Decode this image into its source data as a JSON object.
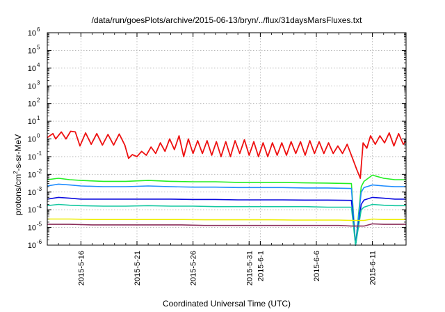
{
  "chart_data": {
    "type": "line",
    "title": "/data/run/goesPlots/archive/2015-06-13/bryn/../flux/31daysMarsFluxes.txt",
    "xlabel": "Coordinated Universal Time (UTC)",
    "ylabel": "protons/cm²-s-sr-MeV",
    "ylabel_parts": {
      "base": "protons/cm",
      "sup": "2",
      "rest": "-s-sr-MeV"
    },
    "y_scale": "log",
    "ylim": [
      1e-06,
      1000000.0
    ],
    "xlim": [
      "2015-05-13",
      "2015-06-14"
    ],
    "grid": true,
    "legend": "none",
    "y_ticks": [
      {
        "value": 1e-06,
        "base": "10",
        "exp": "-6"
      },
      {
        "value": 1e-05,
        "base": "10",
        "exp": "-5"
      },
      {
        "value": 0.0001,
        "base": "10",
        "exp": "-4"
      },
      {
        "value": 0.001,
        "base": "10",
        "exp": "-3"
      },
      {
        "value": 0.01,
        "base": "10",
        "exp": "-2"
      },
      {
        "value": 0.1,
        "base": "10",
        "exp": "-1"
      },
      {
        "value": 1.0,
        "base": "10",
        "exp": "0"
      },
      {
        "value": 10.0,
        "base": "10",
        "exp": "1"
      },
      {
        "value": 100.0,
        "base": "10",
        "exp": "2"
      },
      {
        "value": 1000.0,
        "base": "10",
        "exp": "3"
      },
      {
        "value": 10000.0,
        "base": "10",
        "exp": "4"
      },
      {
        "value": 100000.0,
        "base": "10",
        "exp": "5"
      },
      {
        "value": 1000000.0,
        "base": "10",
        "exp": "6"
      }
    ],
    "x_ticks": [
      {
        "date": "2015-05-16",
        "label": "2015-5-16"
      },
      {
        "date": "2015-05-21",
        "label": "2015-5-21"
      },
      {
        "date": "2015-05-26",
        "label": "2015-5-26"
      },
      {
        "date": "2015-05-31",
        "label": "2015-5-31"
      },
      {
        "date": "2015-06-01",
        "label": "2015-6-1"
      },
      {
        "date": "2015-06-06",
        "label": "2015-6-6"
      },
      {
        "date": "2015-06-11",
        "label": "2015-6-11"
      }
    ],
    "series": [
      {
        "color": "#ee1111",
        "width": 1.8,
        "points": [
          [
            "2015-05-13 00:00",
            1.2
          ],
          [
            "2015-05-13 12:00",
            2.0
          ],
          [
            "2015-05-13 18:00",
            1.0
          ],
          [
            "2015-05-14 06:00",
            2.5
          ],
          [
            "2015-05-14 16:00",
            1.0
          ],
          [
            "2015-05-15 02:00",
            2.7
          ],
          [
            "2015-05-15 12:00",
            2.5
          ],
          [
            "2015-05-15 22:00",
            0.4
          ],
          [
            "2015-05-16 10:00",
            2.2
          ],
          [
            "2015-05-16 22:00",
            0.5
          ],
          [
            "2015-05-17 10:00",
            2.0
          ],
          [
            "2015-05-17 22:00",
            0.45
          ],
          [
            "2015-05-18 10:00",
            1.8
          ],
          [
            "2015-05-18 22:00",
            0.45
          ],
          [
            "2015-05-19 10:00",
            1.9
          ],
          [
            "2015-05-19 22:00",
            0.45
          ],
          [
            "2015-05-20 06:00",
            0.08
          ],
          [
            "2015-05-20 14:00",
            0.13
          ],
          [
            "2015-05-21 00:00",
            0.1
          ],
          [
            "2015-05-21 10:00",
            0.2
          ],
          [
            "2015-05-21 20:00",
            0.12
          ],
          [
            "2015-05-22 06:00",
            0.35
          ],
          [
            "2015-05-22 16:00",
            0.15
          ],
          [
            "2015-05-23 02:00",
            0.6
          ],
          [
            "2015-05-23 12:00",
            0.2
          ],
          [
            "2015-05-23 22:00",
            1.0
          ],
          [
            "2015-05-24 08:00",
            0.25
          ],
          [
            "2015-05-24 18:00",
            1.5
          ],
          [
            "2015-05-25 04:00",
            0.1
          ],
          [
            "2015-05-25 14:00",
            1.0
          ],
          [
            "2015-05-26 00:00",
            0.15
          ],
          [
            "2015-05-26 10:00",
            0.8
          ],
          [
            "2015-05-26 20:00",
            0.15
          ],
          [
            "2015-05-27 06:00",
            0.8
          ],
          [
            "2015-05-27 16:00",
            0.12
          ],
          [
            "2015-05-28 02:00",
            0.7
          ],
          [
            "2015-05-28 12:00",
            0.1
          ],
          [
            "2015-05-28 22:00",
            0.7
          ],
          [
            "2015-05-29 08:00",
            0.1
          ],
          [
            "2015-05-29 18:00",
            0.8
          ],
          [
            "2015-05-30 04:00",
            0.15
          ],
          [
            "2015-05-30 14:00",
            0.9
          ],
          [
            "2015-05-31 00:00",
            0.12
          ],
          [
            "2015-05-31 10:00",
            0.7
          ],
          [
            "2015-05-31 20:00",
            0.1
          ],
          [
            "2015-06-01 06:00",
            0.6
          ],
          [
            "2015-06-01 16:00",
            0.1
          ],
          [
            "2015-06-02 02:00",
            0.6
          ],
          [
            "2015-06-02 12:00",
            0.12
          ],
          [
            "2015-06-02 22:00",
            0.6
          ],
          [
            "2015-06-03 08:00",
            0.12
          ],
          [
            "2015-06-03 18:00",
            0.7
          ],
          [
            "2015-06-04 04:00",
            0.15
          ],
          [
            "2015-06-04 14:00",
            0.7
          ],
          [
            "2015-06-05 00:00",
            0.12
          ],
          [
            "2015-06-05 10:00",
            0.8
          ],
          [
            "2015-06-05 20:00",
            0.15
          ],
          [
            "2015-06-06 06:00",
            0.7
          ],
          [
            "2015-06-06 16:00",
            0.15
          ],
          [
            "2015-06-07 02:00",
            0.6
          ],
          [
            "2015-06-07 12:00",
            0.15
          ],
          [
            "2015-06-07 22:00",
            0.4
          ],
          [
            "2015-06-08 08:00",
            0.15
          ],
          [
            "2015-06-08 18:00",
            0.5
          ],
          [
            "2015-06-09 04:00",
            0.1
          ],
          [
            "2015-06-09 14:00",
            0.02
          ],
          [
            "2015-06-09 22:00",
            0.006
          ],
          [
            "2015-06-10 04:00",
            0.6
          ],
          [
            "2015-06-10 12:00",
            0.3
          ],
          [
            "2015-06-10 20:00",
            1.5
          ],
          [
            "2015-06-11 06:00",
            0.5
          ],
          [
            "2015-06-11 16:00",
            1.5
          ],
          [
            "2015-06-12 02:00",
            0.6
          ],
          [
            "2015-06-12 12:00",
            2.2
          ],
          [
            "2015-06-12 22:00",
            0.4
          ],
          [
            "2015-06-13 08:00",
            2.0
          ],
          [
            "2015-06-13 18:00",
            0.5
          ],
          [
            "2015-06-14 00:00",
            0.8
          ]
        ]
      },
      {
        "color": "#22ee22",
        "width": 1.6,
        "points": [
          [
            "2015-05-13 00:00",
            0.005
          ],
          [
            "2015-05-14 00:00",
            0.006
          ],
          [
            "2015-05-15 00:00",
            0.005
          ],
          [
            "2015-05-16 00:00",
            0.0045
          ],
          [
            "2015-05-18 00:00",
            0.004
          ],
          [
            "2015-05-20 00:00",
            0.004
          ],
          [
            "2015-05-22 00:00",
            0.0045
          ],
          [
            "2015-05-24 00:00",
            0.004
          ],
          [
            "2015-05-26 00:00",
            0.0038
          ],
          [
            "2015-05-28 00:00",
            0.0038
          ],
          [
            "2015-05-30 00:00",
            0.0035
          ],
          [
            "2015-06-01 00:00",
            0.0035
          ],
          [
            "2015-06-03 00:00",
            0.0035
          ],
          [
            "2015-06-05 00:00",
            0.0033
          ],
          [
            "2015-06-07 00:00",
            0.0032
          ],
          [
            "2015-06-09 00:00",
            0.003
          ],
          [
            "2015-06-09 03:00",
            0.003
          ],
          [
            "2015-06-09 12:00",
            1e-06
          ],
          [
            "2015-06-10 00:00",
            0.002
          ],
          [
            "2015-06-10 06:00",
            0.004
          ],
          [
            "2015-06-11 00:00",
            0.009
          ],
          [
            "2015-06-12 00:00",
            0.006
          ],
          [
            "2015-06-13 00:00",
            0.005
          ],
          [
            "2015-06-14 00:00",
            0.005
          ]
        ]
      },
      {
        "color": "#1e8cff",
        "width": 1.6,
        "points": [
          [
            "2015-05-13 00:00",
            0.0022
          ],
          [
            "2015-05-14 00:00",
            0.0028
          ],
          [
            "2015-05-15 00:00",
            0.0025
          ],
          [
            "2015-05-16 00:00",
            0.0022
          ],
          [
            "2015-05-18 00:00",
            0.002
          ],
          [
            "2015-05-20 00:00",
            0.002
          ],
          [
            "2015-05-22 00:00",
            0.0022
          ],
          [
            "2015-05-24 00:00",
            0.002
          ],
          [
            "2015-05-26 00:00",
            0.0019
          ],
          [
            "2015-05-28 00:00",
            0.0019
          ],
          [
            "2015-05-30 00:00",
            0.0018
          ],
          [
            "2015-06-01 00:00",
            0.0018
          ],
          [
            "2015-06-03 00:00",
            0.0018
          ],
          [
            "2015-06-05 00:00",
            0.0017
          ],
          [
            "2015-06-07 00:00",
            0.0017
          ],
          [
            "2015-06-09 00:00",
            0.0016
          ],
          [
            "2015-06-09 03:00",
            0.0016
          ],
          [
            "2015-06-09 12:00",
            1e-06
          ],
          [
            "2015-06-10 00:00",
            0.001
          ],
          [
            "2015-06-10 06:00",
            0.0018
          ],
          [
            "2015-06-11 00:00",
            0.0025
          ],
          [
            "2015-06-12 00:00",
            0.0022
          ],
          [
            "2015-06-13 00:00",
            0.002
          ],
          [
            "2015-06-14 00:00",
            0.002
          ]
        ]
      },
      {
        "color": "#0a0ae0",
        "width": 1.6,
        "points": [
          [
            "2015-05-13 00:00",
            0.0004
          ],
          [
            "2015-05-14 00:00",
            0.0005
          ],
          [
            "2015-05-15 00:00",
            0.00045
          ],
          [
            "2015-05-16 00:00",
            0.0004
          ],
          [
            "2015-05-18 00:00",
            0.0004
          ],
          [
            "2015-05-20 00:00",
            0.0004
          ],
          [
            "2015-05-22 00:00",
            0.0004
          ],
          [
            "2015-05-24 00:00",
            0.0004
          ],
          [
            "2015-05-26 00:00",
            0.00038
          ],
          [
            "2015-05-28 00:00",
            0.00038
          ],
          [
            "2015-05-30 00:00",
            0.00036
          ],
          [
            "2015-06-01 00:00",
            0.00036
          ],
          [
            "2015-06-03 00:00",
            0.00036
          ],
          [
            "2015-06-05 00:00",
            0.00035
          ],
          [
            "2015-06-07 00:00",
            0.00035
          ],
          [
            "2015-06-09 00:00",
            0.00034
          ],
          [
            "2015-06-09 03:00",
            0.00034
          ],
          [
            "2015-06-09 12:00",
            1e-06
          ],
          [
            "2015-06-10 00:00",
            0.0002
          ],
          [
            "2015-06-10 06:00",
            0.00035
          ],
          [
            "2015-06-11 00:00",
            0.0005
          ],
          [
            "2015-06-12 00:00",
            0.00045
          ],
          [
            "2015-06-13 00:00",
            0.0004
          ],
          [
            "2015-06-14 00:00",
            0.0004
          ]
        ]
      },
      {
        "color": "#14c8a0",
        "width": 1.6,
        "points": [
          [
            "2015-05-13 00:00",
            0.00017
          ],
          [
            "2015-05-14 00:00",
            0.0002
          ],
          [
            "2015-05-15 00:00",
            0.00018
          ],
          [
            "2015-05-16 00:00",
            0.00017
          ],
          [
            "2015-05-18 00:00",
            0.00016
          ],
          [
            "2015-05-20 00:00",
            0.00016
          ],
          [
            "2015-05-22 00:00",
            0.00017
          ],
          [
            "2015-05-24 00:00",
            0.00016
          ],
          [
            "2015-05-26 00:00",
            0.00016
          ],
          [
            "2015-05-28 00:00",
            0.00015
          ],
          [
            "2015-05-30 00:00",
            0.00015
          ],
          [
            "2015-06-01 00:00",
            0.00015
          ],
          [
            "2015-06-03 00:00",
            0.00015
          ],
          [
            "2015-06-05 00:00",
            0.00015
          ],
          [
            "2015-06-07 00:00",
            0.00014
          ],
          [
            "2015-06-09 00:00",
            0.00014
          ],
          [
            "2015-06-09 03:00",
            0.00014
          ],
          [
            "2015-06-09 12:00",
            1e-06
          ],
          [
            "2015-06-10 00:00",
            0.0001
          ],
          [
            "2015-06-10 06:00",
            0.00014
          ],
          [
            "2015-06-11 00:00",
            0.0002
          ],
          [
            "2015-06-12 00:00",
            0.00018
          ],
          [
            "2015-06-13 00:00",
            0.00017
          ],
          [
            "2015-06-14 00:00",
            0.00017
          ]
        ]
      },
      {
        "color": "#eeee00",
        "width": 1.6,
        "points": [
          [
            "2015-05-13 00:00",
            3e-05
          ],
          [
            "2015-05-15 00:00",
            3e-05
          ],
          [
            "2015-05-17 00:00",
            2.8e-05
          ],
          [
            "2015-05-19 00:00",
            2.8e-05
          ],
          [
            "2015-05-21 00:00",
            2.8e-05
          ],
          [
            "2015-05-23 00:00",
            2.8e-05
          ],
          [
            "2015-05-25 00:00",
            2.8e-05
          ],
          [
            "2015-05-27 00:00",
            2.7e-05
          ],
          [
            "2015-05-29 00:00",
            2.7e-05
          ],
          [
            "2015-05-31 00:00",
            2.7e-05
          ],
          [
            "2015-06-02 00:00",
            2.7e-05
          ],
          [
            "2015-06-04 00:00",
            2.6e-05
          ],
          [
            "2015-06-06 00:00",
            2.6e-05
          ],
          [
            "2015-06-08 00:00",
            2.6e-05
          ],
          [
            "2015-06-09 03:00",
            2.5e-05
          ],
          [
            "2015-06-10 06:00",
            2.5e-05
          ],
          [
            "2015-06-11 00:00",
            3e-05
          ],
          [
            "2015-06-12 00:00",
            2.8e-05
          ],
          [
            "2015-06-13 00:00",
            2.8e-05
          ],
          [
            "2015-06-14 00:00",
            2.8e-05
          ]
        ]
      },
      {
        "color": "#8b2e5a",
        "width": 1.6,
        "points": [
          [
            "2015-05-13 00:00",
            1.5e-05
          ],
          [
            "2015-05-15 00:00",
            1.5e-05
          ],
          [
            "2015-05-17 00:00",
            1.4e-05
          ],
          [
            "2015-05-19 00:00",
            1.4e-05
          ],
          [
            "2015-05-21 00:00",
            1.4e-05
          ],
          [
            "2015-05-23 00:00",
            1.4e-05
          ],
          [
            "2015-05-25 00:00",
            1.4e-05
          ],
          [
            "2015-05-27 00:00",
            1.3e-05
          ],
          [
            "2015-05-29 00:00",
            1.3e-05
          ],
          [
            "2015-05-31 00:00",
            1.3e-05
          ],
          [
            "2015-06-02 00:00",
            1.3e-05
          ],
          [
            "2015-06-04 00:00",
            1.3e-05
          ],
          [
            "2015-06-06 00:00",
            1.3e-05
          ],
          [
            "2015-06-08 00:00",
            1.3e-05
          ],
          [
            "2015-06-09 03:00",
            1.2e-05
          ],
          [
            "2015-06-10 06:00",
            1.2e-05
          ],
          [
            "2015-06-11 00:00",
            1.6e-05
          ],
          [
            "2015-06-12 00:00",
            1.5e-05
          ],
          [
            "2015-06-13 00:00",
            1.5e-05
          ],
          [
            "2015-06-14 00:00",
            1.5e-05
          ]
        ]
      }
    ]
  }
}
